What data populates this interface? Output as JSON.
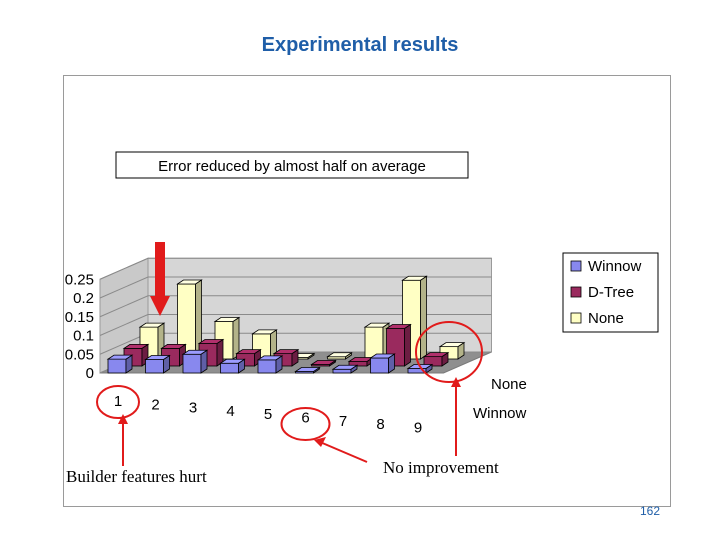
{
  "slide": {
    "title": "Experimental results",
    "page_number": "162"
  },
  "annotations": {
    "callout": "Error reduced by almost half on average",
    "builder_note": "Builder features hurt",
    "no_improvement_note": "No improvement"
  },
  "colors": {
    "winnow": "#8888ee",
    "dtree": "#9a2a5e",
    "none": "#ffffc4",
    "accent": "#e11b1b",
    "title": "#1f5ea8"
  },
  "chart_data": {
    "type": "bar",
    "categories": [
      "1",
      "2",
      "3",
      "4",
      "5",
      "6",
      "7",
      "8",
      "9"
    ],
    "depth_labels": [
      "None",
      "Winnow"
    ],
    "series": [
      {
        "name": "Winnow",
        "values": [
          0.037,
          0.036,
          0.05,
          0.026,
          0.035,
          0.002,
          0.01,
          0.04,
          0.012
        ]
      },
      {
        "name": "D-Tree",
        "values": [
          0.047,
          0.047,
          0.06,
          0.033,
          0.033,
          0.003,
          0.012,
          0.1,
          0.025
        ]
      },
      {
        "name": "None",
        "values": [
          0.085,
          0.2,
          0.1,
          0.067,
          0.003,
          0.006,
          0.085,
          0.21,
          0.033
        ]
      }
    ],
    "yticks": [
      "0",
      "0.05",
      "0.1",
      "0.15",
      "0.2",
      "0.25"
    ],
    "ylim": [
      0,
      0.25
    ],
    "grid": true,
    "legend_position": "right",
    "highlighted_categories": [
      "1",
      "6"
    ]
  }
}
